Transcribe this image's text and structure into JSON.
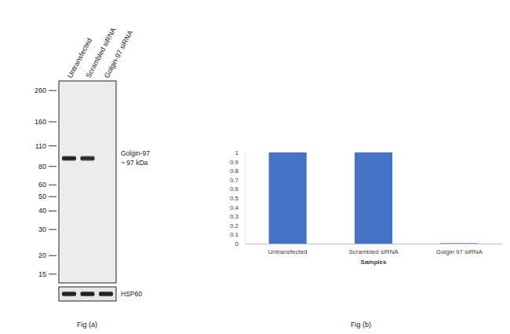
{
  "chart_data": {
    "type": "bar",
    "categories": [
      "Untransfected",
      "Scrambled siRNA",
      "Golgin 97 siRNA"
    ],
    "values": [
      1,
      1,
      0.005
    ],
    "color": "#4472c4",
    "ylim": [
      0,
      1
    ],
    "yticks": [
      0,
      0.1,
      0.2,
      0.3,
      0.4,
      0.5,
      0.6,
      0.7,
      0.8,
      0.9,
      1
    ],
    "xlabel": "Samples",
    "grid": false
  },
  "blot": {
    "lanes": [
      "Untransfected",
      "Scrambled siRNA",
      "Golgin-97 siRNA"
    ],
    "markers": [
      260,
      160,
      110,
      80,
      60,
      50,
      40,
      30,
      20,
      15
    ],
    "ylim": [
      300,
      13
    ],
    "band_label": "Golgin-97",
    "band_size": "~ 97 kDa",
    "band_kda": 90,
    "band_intensity": [
      1,
      0.95,
      0
    ],
    "loading_control": "HSP60",
    "loading_intensity": [
      1,
      1,
      1
    ]
  },
  "captions": [
    "Fig (a)",
    "Fig (b)"
  ]
}
